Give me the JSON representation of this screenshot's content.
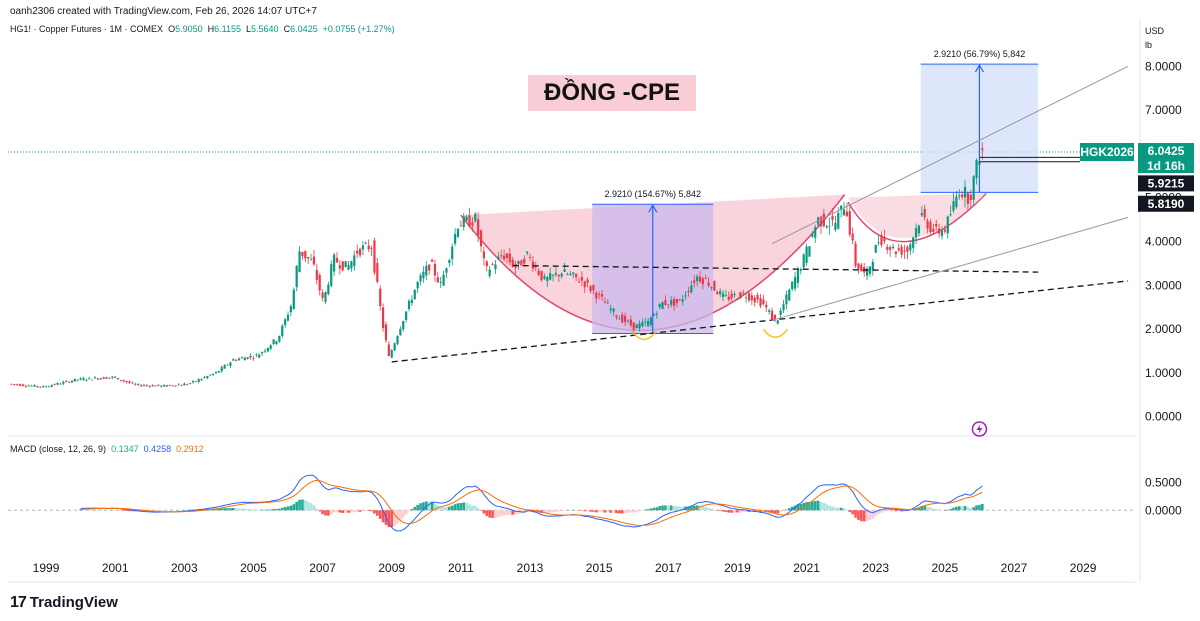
{
  "header": {
    "credit": "oanh2306 created with TradingView.com, Feb 26, 2026 14:07 UTC+7",
    "symbol_text": "HG1! · Copper Futures · 1M · COMEX",
    "open_label": "O",
    "open": "5.9050",
    "high_label": "H",
    "high": "6.1155",
    "low_label": "L",
    "low": "5.5640",
    "close_label": "C",
    "close": "6.0425",
    "change": "+0.0755 (+1.27%)"
  },
  "units": {
    "currency": "USD",
    "unit": "lb"
  },
  "title": "ĐỒNG -CPE",
  "price_tags": {
    "ticker": "HGK2026",
    "price": "6.0425",
    "countdown": "1d 16h",
    "level1": "5.9215",
    "level2": "5.8190"
  },
  "measures": [
    {
      "label": "2.9210 (154.67%) 5,842"
    },
    {
      "label": "2.9210 (56.79%) 5,842"
    }
  ],
  "macd": {
    "label": "MACD (close, 12, 26, 9)",
    "hist": "0.1347",
    "macd": "0.4258",
    "signal": "0.2912"
  },
  "colors": {
    "up": "#089981",
    "down": "#f23645",
    "macd": "#2962ff",
    "signal": "#ff6d00",
    "cup": "#f7c5d0",
    "box_purple": "#c9b8ec",
    "box_blue": "#d1ddfa"
  },
  "logo": {
    "mark": "17",
    "text": "TradingView"
  },
  "chart_data": {
    "type": "candlestick",
    "x_axis": {
      "ticks": [
        "1999",
        "2001",
        "2003",
        "2005",
        "2007",
        "2009",
        "2011",
        "2013",
        "2015",
        "2017",
        "2019",
        "2021",
        "2023",
        "2025",
        "2027",
        "2029"
      ],
      "range": [
        1997.9,
        2030.5
      ]
    },
    "y_axis": {
      "ticks": [
        "0.0000",
        "1.0000",
        "2.0000",
        "3.0000",
        "4.0000",
        "5.0000",
        "6.0000",
        "7.0000",
        "8.0000"
      ],
      "range": [
        -0.35,
        8.6
      ]
    },
    "macd_axis": {
      "ticks": [
        "0.0000",
        "0.5000"
      ],
      "range": [
        -0.9,
        1.2
      ]
    },
    "price_path": [
      [
        1998.0,
        0.75
      ],
      [
        1999.0,
        0.68
      ],
      [
        2000.0,
        0.85
      ],
      [
        2001.0,
        0.9
      ],
      [
        2001.7,
        0.72
      ],
      [
        2002.5,
        0.7
      ],
      [
        2003.2,
        0.75
      ],
      [
        2004.0,
        1.0
      ],
      [
        2004.5,
        1.3
      ],
      [
        2005.2,
        1.4
      ],
      [
        2005.8,
        1.8
      ],
      [
        2006.2,
        2.6
      ],
      [
        2006.4,
        3.8
      ],
      [
        2006.8,
        3.5
      ],
      [
        2007.1,
        2.6
      ],
      [
        2007.4,
        3.6
      ],
      [
        2007.8,
        3.4
      ],
      [
        2008.1,
        3.8
      ],
      [
        2008.5,
        3.9
      ],
      [
        2008.8,
        2.2
      ],
      [
        2009.0,
        1.35
      ],
      [
        2009.4,
        2.2
      ],
      [
        2009.8,
        3.0
      ],
      [
        2010.2,
        3.5
      ],
      [
        2010.5,
        3.0
      ],
      [
        2011.0,
        4.4
      ],
      [
        2011.5,
        4.5
      ],
      [
        2011.8,
        3.3
      ],
      [
        2012.3,
        3.7
      ],
      [
        2012.7,
        3.4
      ],
      [
        2013.0,
        3.7
      ],
      [
        2013.5,
        3.1
      ],
      [
        2014.0,
        3.3
      ],
      [
        2014.6,
        3.1
      ],
      [
        2015.0,
        2.8
      ],
      [
        2015.6,
        2.3
      ],
      [
        2016.1,
        2.05
      ],
      [
        2016.5,
        2.15
      ],
      [
        2016.9,
        2.6
      ],
      [
        2017.4,
        2.6
      ],
      [
        2017.9,
        3.2
      ],
      [
        2018.2,
        3.1
      ],
      [
        2018.7,
        2.7
      ],
      [
        2019.3,
        2.8
      ],
      [
        2019.8,
        2.6
      ],
      [
        2020.2,
        2.15
      ],
      [
        2020.6,
        2.9
      ],
      [
        2021.0,
        3.6
      ],
      [
        2021.4,
        4.5
      ],
      [
        2021.9,
        4.4
      ],
      [
        2022.2,
        4.9
      ],
      [
        2022.5,
        3.5
      ],
      [
        2022.8,
        3.2
      ],
      [
        2023.2,
        4.1
      ],
      [
        2023.6,
        3.8
      ],
      [
        2024.0,
        3.8
      ],
      [
        2024.4,
        4.6
      ],
      [
        2024.8,
        4.2
      ],
      [
        2025.1,
        4.3
      ],
      [
        2025.5,
        5.2
      ],
      [
        2025.8,
        5.0
      ],
      [
        2026.1,
        6.04
      ]
    ],
    "cup_rims": [
      [
        2011.0,
        4.6
      ],
      [
        2022.1,
        5.07
      ]
    ],
    "cup_bottom": [
      2016.3,
      1.9
    ],
    "handle_bottom": [
      2020.1,
      1.95
    ],
    "measure_boxes": [
      {
        "x0": 2014.8,
        "x1": 2018.3,
        "y0": 1.9,
        "y1": 4.85,
        "label_index": 0
      },
      {
        "x0": 2024.3,
        "x1": 2027.7,
        "y0": 5.12,
        "y1": 8.05,
        "label_index": 1
      }
    ],
    "trendlines": [
      {
        "from": [
          2009.0,
          1.25
        ],
        "to": [
          2030.3,
          3.1
        ],
        "style": "dashed"
      },
      {
        "from": [
          2012.5,
          3.45
        ],
        "to": [
          2027.7,
          3.3
        ],
        "style": "dashed"
      },
      {
        "from": [
          2020.0,
          2.2
        ],
        "to": [
          2030.3,
          4.55
        ],
        "style": "solid"
      },
      {
        "from": [
          2020.0,
          3.95
        ],
        "to": [
          2030.3,
          8.0
        ],
        "style": "solid"
      }
    ],
    "horizontal_levels": [
      5.92,
      5.82
    ]
  }
}
